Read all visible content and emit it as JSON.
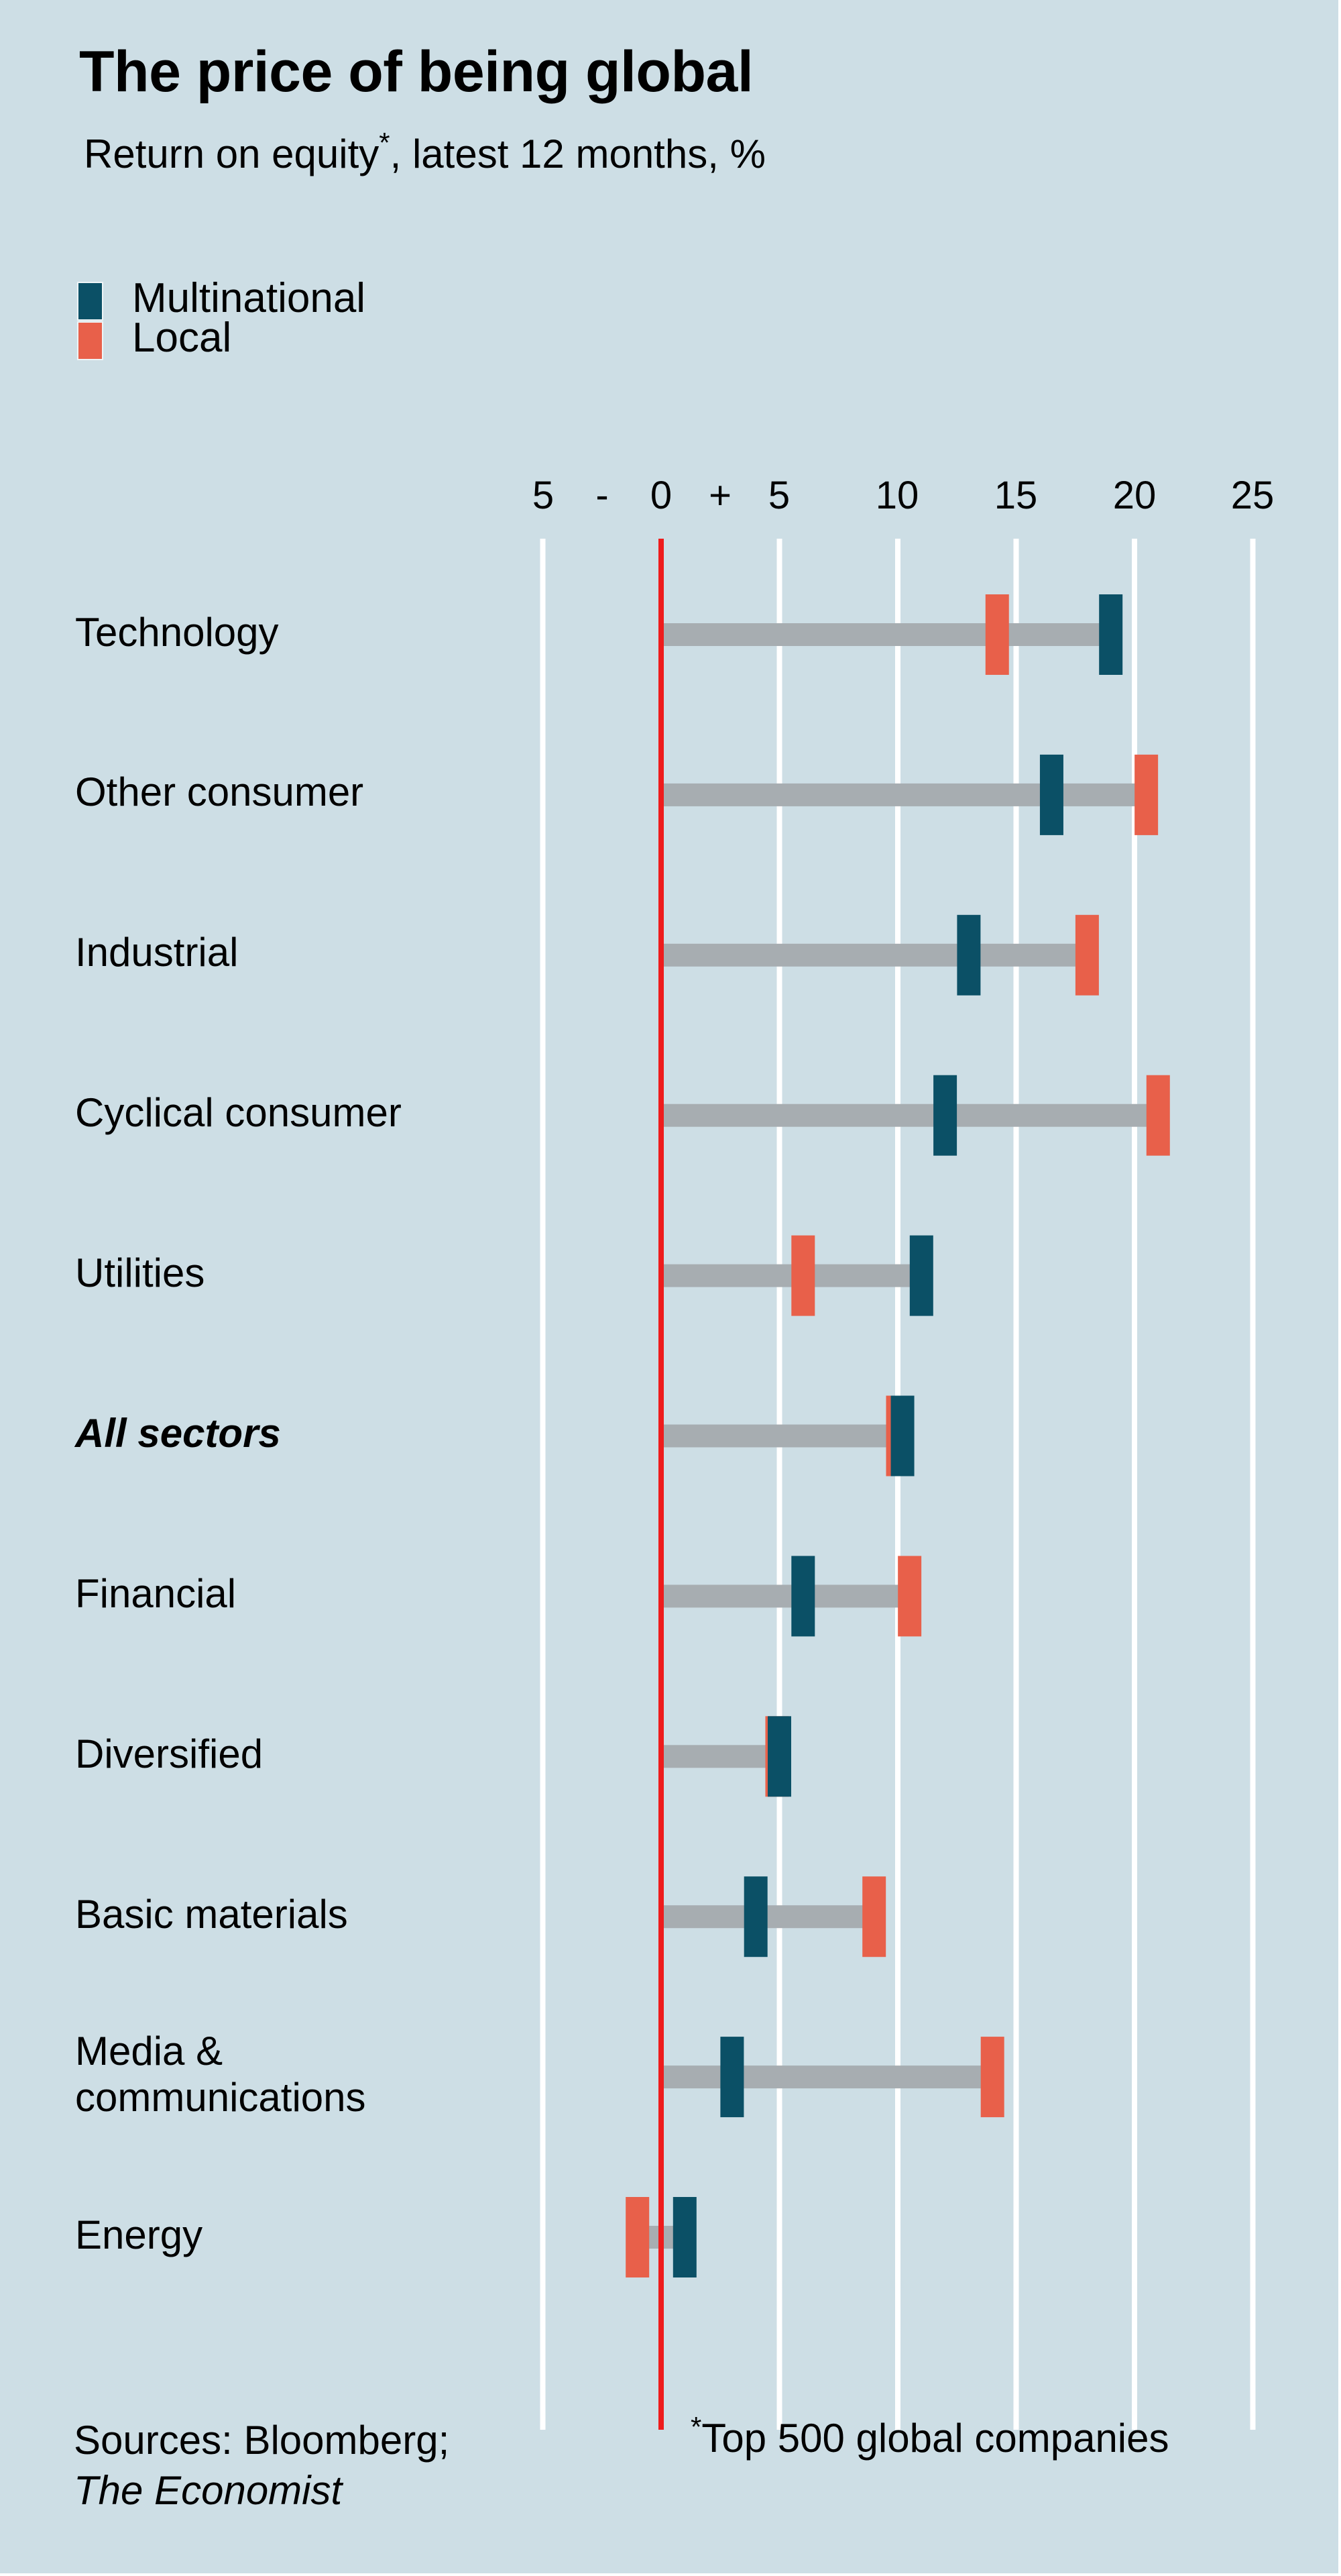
{
  "header": {
    "title": "The price of being global",
    "subtitle_before": "Return on equity",
    "subtitle_mark": "*",
    "subtitle_after": ", latest 12 months, %"
  },
  "legend": [
    {
      "label": "Multinational",
      "color": "#0b5066"
    },
    {
      "label": "Local",
      "color": "#e8604a"
    }
  ],
  "axis": {
    "tick_labels": [
      "5",
      "-",
      "0",
      "+",
      "5",
      "10",
      "15",
      "20",
      "25"
    ]
  },
  "footer": {
    "sources_prefix": "Sources: Bloomberg;",
    "sources_italic": "The Economist",
    "footnote_mark": "*",
    "footnote_text": "Top 500 global companies"
  },
  "chart_data": {
    "type": "dot-range",
    "title": "The price of being global",
    "subtitle": "Return on equity*, latest 12 months, %",
    "xlabel": "",
    "ylabel": "",
    "xlim": [
      -5,
      25
    ],
    "xticks": [
      -5,
      0,
      5,
      10,
      15,
      20,
      25
    ],
    "grid": true,
    "legend_position": "top-left",
    "colors": {
      "multinational": "#0b5066",
      "local": "#e8604a",
      "connector": "#a7adb1",
      "zero_line": "#ee1c1c",
      "grid": "#ffffff",
      "background": "#cddee5"
    },
    "categories": [
      "Technology",
      "Other consumer",
      "Industrial",
      "Cyclical consumer",
      "Utilities",
      "All sectors",
      "Financial",
      "Diversified",
      "Basic materials",
      "Media & communications",
      "Energy"
    ],
    "category_lines": [
      [
        "Technology"
      ],
      [
        "Other consumer"
      ],
      [
        "Industrial"
      ],
      [
        "Cyclical consumer"
      ],
      [
        "Utilities"
      ],
      [
        "All sectors"
      ],
      [
        "Financial"
      ],
      [
        "Diversified"
      ],
      [
        "Basic materials"
      ],
      [
        "Media &",
        "communications"
      ],
      [
        "Energy"
      ]
    ],
    "highlight_category": "All sectors",
    "series": [
      {
        "name": "Multinational",
        "values": [
          19.0,
          16.5,
          13.0,
          12.0,
          11.0,
          10.2,
          6.0,
          5.0,
          4.0,
          3.0,
          1.0
        ]
      },
      {
        "name": "Local",
        "values": [
          14.2,
          20.5,
          18.0,
          21.0,
          6.0,
          10.0,
          10.5,
          4.9,
          9.0,
          14.0,
          -1.0
        ]
      }
    ],
    "footnote": "*Top 500 global companies",
    "source": "Sources: Bloomberg; The Economist"
  }
}
